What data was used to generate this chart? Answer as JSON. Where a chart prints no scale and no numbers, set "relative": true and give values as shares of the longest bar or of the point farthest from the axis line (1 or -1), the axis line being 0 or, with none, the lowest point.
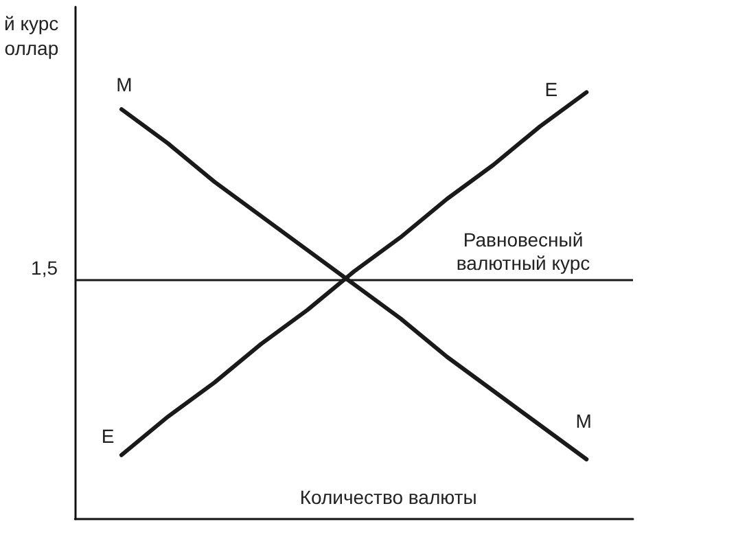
{
  "chart_data": {
    "type": "line",
    "relative": true,
    "ylabel": "й курс\nоллар",
    "xlabel": "Количество валюты",
    "categories": [
      null,
      null,
      null,
      null,
      null,
      null,
      null,
      null,
      null,
      null,
      null,
      null,
      null
    ],
    "series": [
      {
        "name": "M",
        "color": "#1a1a1a",
        "values": [
          null,
          0.96,
          0.88,
          0.79,
          0.71,
          0.63,
          0.55,
          0.47,
          0.38,
          0.3,
          0.22,
          0.14,
          null
        ]
      },
      {
        "name": "E",
        "color": "#1a1a1a",
        "values": [
          null,
          0.15,
          0.24,
          0.32,
          0.41,
          0.49,
          0.58,
          0.66,
          0.75,
          0.83,
          0.92,
          1,
          null
        ]
      }
    ],
    "ref_lines": [
      {
        "axis": "y",
        "value": 0.56,
        "label": "Равновесный валютный курс",
        "color": "#1a1a1a"
      }
    ],
    "annotations": [
      "1,5"
    ]
  }
}
